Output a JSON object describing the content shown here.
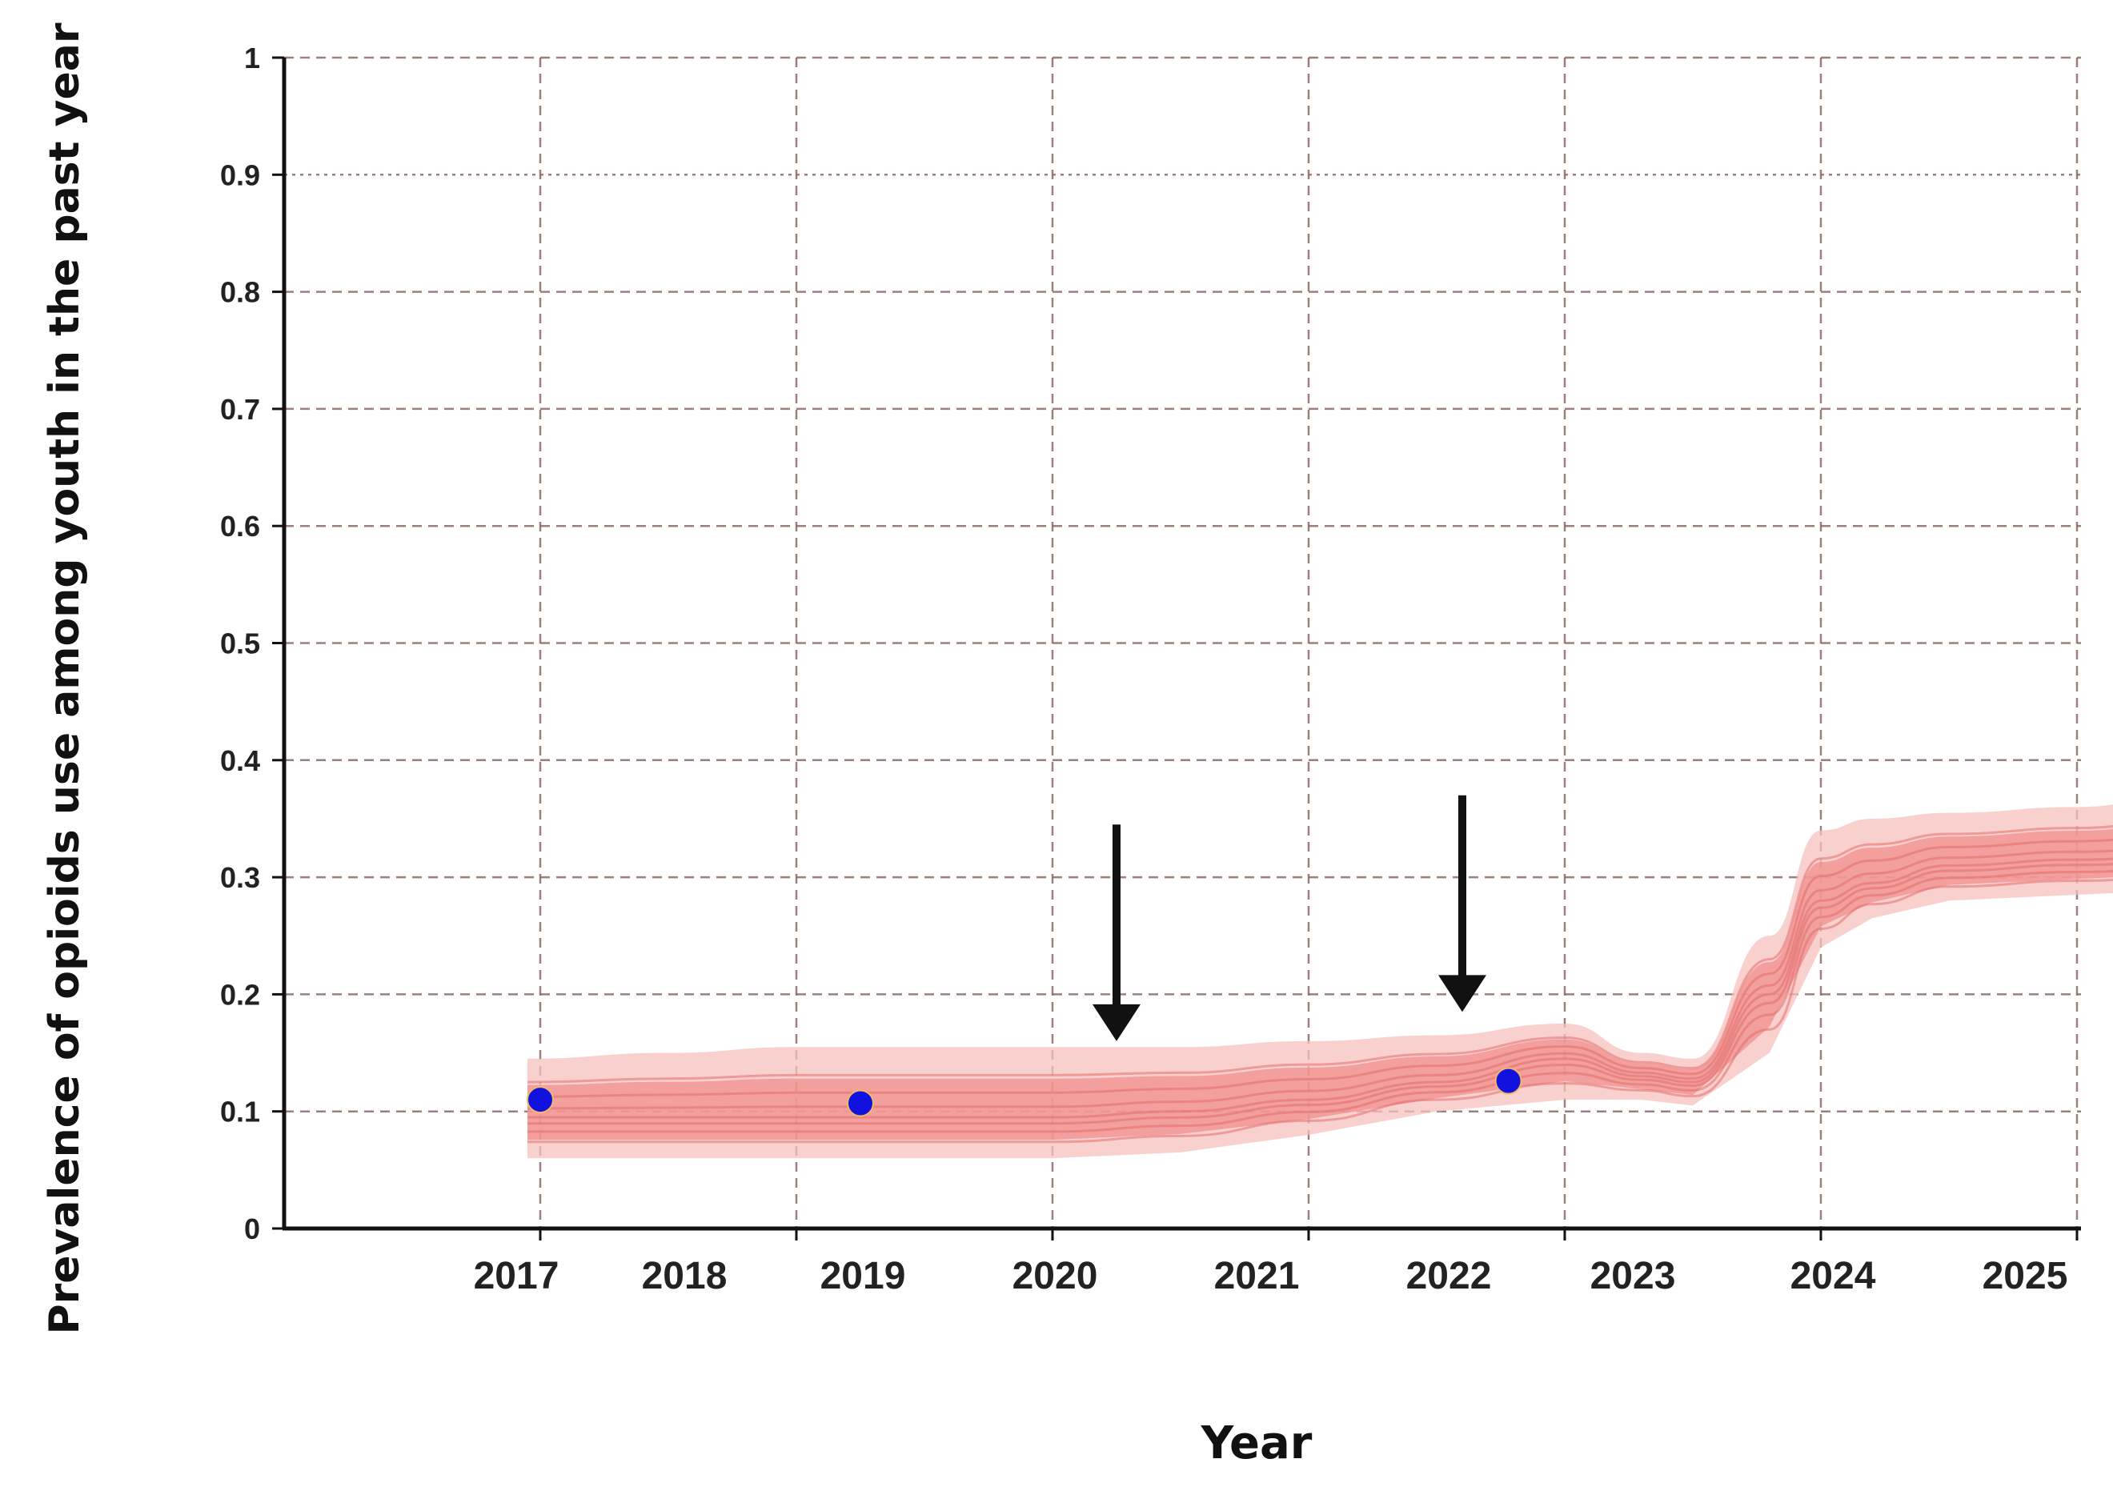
{
  "chart_data": {
    "type": "line",
    "title": "",
    "xlabel": "Year",
    "ylabel": "Prevalence of opioids use among youth in the past year",
    "x_tick_labels": [
      "2017",
      "2018",
      "2019",
      "2020",
      "2021",
      "2022",
      "2023",
      "2024",
      "2025"
    ],
    "y_tick_labels": [
      "1",
      "0.9",
      "0.8",
      "0.7",
      "0.6",
      "0.5",
      "0.4",
      "0.3",
      "0.2",
      "0.1",
      "0"
    ],
    "ylim": [
      0,
      1
    ],
    "xlim": [
      2016,
      2023
    ],
    "grid": true,
    "legend": "none",
    "observed_points": {
      "x": [
        2017.0,
        2018.25,
        2020.78
      ],
      "y": [
        0.11,
        0.107,
        0.126
      ]
    },
    "simulated_band": {
      "x": [
        2016.95,
        2017.5,
        2018.0,
        2018.5,
        2019.0,
        2019.5,
        2020.0,
        2020.5,
        2021.0,
        2021.3,
        2021.5,
        2021.8,
        2022.0,
        2022.2,
        2022.5,
        2023.0,
        2023.5,
        2023.7
      ],
      "lower": [
        0.06,
        0.06,
        0.06,
        0.06,
        0.06,
        0.065,
        0.08,
        0.1,
        0.11,
        0.11,
        0.105,
        0.15,
        0.24,
        0.265,
        0.28,
        0.285,
        0.29,
        0.29
      ],
      "median": [
        0.095,
        0.095,
        0.095,
        0.095,
        0.095,
        0.1,
        0.11,
        0.125,
        0.145,
        0.13,
        0.125,
        0.2,
        0.28,
        0.295,
        0.31,
        0.315,
        0.32,
        0.32
      ],
      "upper": [
        0.145,
        0.15,
        0.155,
        0.155,
        0.155,
        0.155,
        0.16,
        0.165,
        0.175,
        0.15,
        0.145,
        0.25,
        0.34,
        0.35,
        0.355,
        0.36,
        0.375,
        0.38
      ]
    },
    "annotation_arrows": [
      {
        "x": 2019.25,
        "y_from": 0.345,
        "y_to": 0.16
      },
      {
        "x": 2020.6,
        "y_from": 0.37,
        "y_to": 0.185
      }
    ],
    "colors": {
      "band": "#ef8a88",
      "band_light": "#f6c2bf",
      "median": "#e46e6c",
      "points": "#1212e0",
      "grid": "#8a6a62",
      "axis": "#111111",
      "arrow": "#111111"
    }
  }
}
